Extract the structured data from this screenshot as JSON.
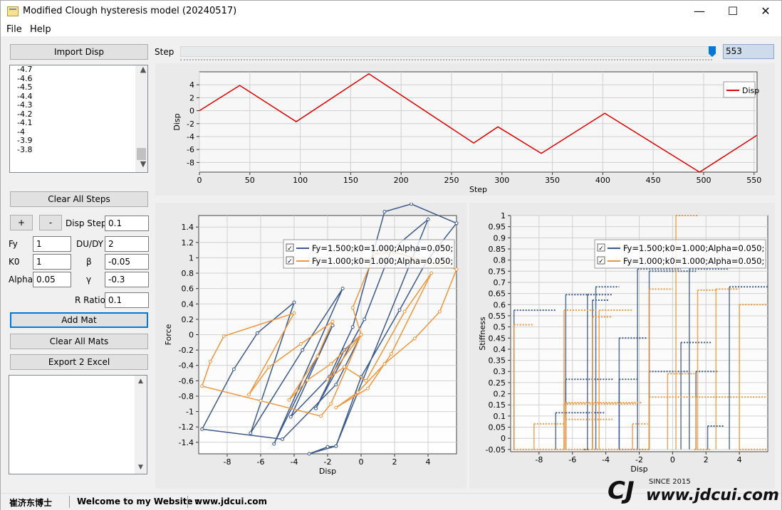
{
  "window": {
    "title": "Modified Clough hysteresis model (20240517)",
    "minimize": "—",
    "maximize": "☐",
    "close": "✕"
  },
  "menu": {
    "file": "File",
    "help": "Help"
  },
  "left": {
    "import_btn": "Import Disp",
    "disp_list": [
      "-4.7",
      "-4.6",
      "-4.5",
      "-4.4",
      "-4.3",
      "-4.2",
      "-4.1",
      "-4",
      "-3.9",
      "-3.8"
    ],
    "clear_steps_btn": "Clear All Steps",
    "plus_btn": "+",
    "minus_btn": "-",
    "disp_step_label": "Disp Step",
    "disp_step_value": "0.1",
    "fy_label": "Fy",
    "fy_value": "1",
    "dudy_label": "DU/DY",
    "dudy_value": "2",
    "k0_label": "K0",
    "k0_value": "1",
    "beta_label": "β",
    "beta_value": "-0.05",
    "alpha_label": "Alpha",
    "alpha_value": "0.05",
    "gamma_label": "γ",
    "gamma_value": "-0.3",
    "rratio_label": "R Ratio",
    "rratio_value": "0.1",
    "add_mat_btn": "Add Mat",
    "clear_mats_btn": "Clear All Mats",
    "export_btn": "Export 2 Excel"
  },
  "step": {
    "label": "Step",
    "value": "553",
    "max": 553
  },
  "status": {
    "author": "崔济东博士",
    "welcome": "Welcome to my Website :",
    "site": "www.jdcui.com"
  },
  "watermark": {
    "text": "www.jdcui.com",
    "since": "SINCE 2015"
  },
  "colors": {
    "disp": "#e00000",
    "series1": "#3c5a8c",
    "series2": "#f0963c"
  },
  "chart_data": [
    {
      "type": "line",
      "xlabel": "Step",
      "ylabel": "Disp",
      "xlim": [
        0,
        553
      ],
      "ylim": [
        -9.5,
        6
      ],
      "xticks": [
        0,
        50,
        100,
        150,
        200,
        250,
        300,
        350,
        400,
        450,
        500,
        550
      ],
      "yticks": [
        4,
        2,
        0,
        -2,
        -4,
        -6,
        -8
      ],
      "legend": "top-right",
      "grid": true,
      "series": [
        {
          "name": "Disp",
          "points": [
            [
              0,
              0
            ],
            [
              40,
              3.9
            ],
            [
              96,
              -1.7
            ],
            [
              168,
              5.7
            ],
            [
              272,
              -5.0
            ],
            [
              296,
              -2.5
            ],
            [
              339,
              -6.6
            ],
            [
              402,
              -0.4
            ],
            [
              496,
              -9.5
            ],
            [
              553,
              -3.8
            ]
          ]
        }
      ]
    },
    {
      "type": "line",
      "xlabel": "Disp",
      "ylabel": "Force",
      "xlim": [
        -9.7,
        5.7
      ],
      "ylim": [
        -1.55,
        1.55
      ],
      "xticks": [
        -8,
        -6,
        -4,
        -2,
        0,
        2,
        4
      ],
      "yticks": [
        1.4,
        1.2,
        1,
        0.8,
        0.6,
        0.4,
        0.2,
        0,
        -0.2,
        -0.4,
        -0.6,
        -0.8,
        -1,
        -1.2,
        -1.4
      ],
      "legend": "top-right",
      "grid": true,
      "series": [
        {
          "name": "Fy=1.500;k0=1.000;Alpha=0.050;",
          "points": [
            [
              0,
              0
            ],
            [
              -1.5,
              -0.65
            ],
            [
              -4.7,
              -1.36
            ],
            [
              -9.5,
              -1.23
            ],
            [
              -7.6,
              -0.45
            ],
            [
              -6.2,
              0.02
            ],
            [
              -4.0,
              0.42
            ],
            [
              -6.6,
              -1.28
            ],
            [
              -3.5,
              -0.2
            ],
            [
              -1.1,
              0.6
            ],
            [
              -5.2,
              -1.42
            ],
            [
              -1.7,
              0.12
            ],
            [
              -4.2,
              -1.07
            ],
            [
              -1.9,
              -0.55
            ],
            [
              -0.5,
              0.1
            ],
            [
              1.4,
              1.6
            ],
            [
              3.0,
              1.7
            ],
            [
              5.7,
              1.45
            ],
            [
              3.9,
              0.95
            ],
            [
              2.3,
              0.32
            ],
            [
              0.0,
              -0.55
            ],
            [
              -1.5,
              -1.45
            ],
            [
              -3.1,
              -1.55
            ],
            [
              -2.0,
              -1.46
            ],
            [
              -1.5,
              -1.45
            ],
            [
              4.0,
              1.5
            ],
            [
              1.8,
              1.1
            ],
            [
              0.2,
              0.2
            ],
            [
              -2.7,
              -0.96
            ],
            [
              -1.0,
              -0.2
            ],
            [
              0,
              0
            ]
          ]
        },
        {
          "name": "Fy=1.000;k0=1.000;Alpha=0.050;",
          "points": [
            [
              0,
              0
            ],
            [
              -1.8,
              -0.9
            ],
            [
              -2.4,
              -1.06
            ],
            [
              -6.0,
              -0.86
            ],
            [
              -9.5,
              -0.67
            ],
            [
              -9.0,
              -0.35
            ],
            [
              -8.2,
              -0.02
            ],
            [
              -4.0,
              0.28
            ],
            [
              -6.7,
              -0.78
            ],
            [
              -5.5,
              -0.42
            ],
            [
              -3.6,
              -0.12
            ],
            [
              -1.7,
              0.17
            ],
            [
              -2.6,
              -0.28
            ],
            [
              -4.3,
              -0.85
            ],
            [
              -3.2,
              -0.59
            ],
            [
              -1.8,
              -0.38
            ],
            [
              0.0,
              0.0
            ],
            [
              -0.5,
              0.35
            ],
            [
              0.8,
              1.05
            ],
            [
              2.0,
              1.07
            ],
            [
              5.7,
              0.85
            ],
            [
              4.7,
              0.3
            ],
            [
              3.2,
              -0.05
            ],
            [
              1.4,
              -0.38
            ],
            [
              -0.2,
              -0.75
            ],
            [
              -1.5,
              -0.95
            ],
            [
              0.4,
              -0.7
            ],
            [
              1.8,
              -0.25
            ],
            [
              4.2,
              0.8
            ],
            [
              2.6,
              0.3
            ],
            [
              0.3,
              -0.6
            ],
            [
              -1.0,
              -0.42
            ],
            [
              -2.0,
              -0.58
            ],
            [
              0,
              0
            ]
          ]
        }
      ]
    },
    {
      "type": "step",
      "xlabel": "Disp",
      "ylabel": "Stiffness",
      "xlim": [
        -9.7,
        5.7
      ],
      "ylim": [
        -0.06,
        1.0
      ],
      "xticks": [
        -8,
        -6,
        -4,
        -2,
        0,
        2,
        4
      ],
      "yticks": [
        1,
        0.95,
        0.9,
        0.85,
        0.8,
        0.75,
        0.7,
        0.65,
        0.6,
        0.55,
        0.5,
        0.45,
        0.4,
        0.35,
        0.3,
        0.25,
        0.2,
        0.15,
        0.1,
        0.05,
        0,
        -0.05
      ],
      "legend": "top-right",
      "grid": true,
      "series": [
        {
          "name": "Fy=1.500;k0=1.000;Alpha=0.050;",
          "segments": [
            [
              -9.5,
              -7.0,
              0.575
            ],
            [
              -7.0,
              -6.4,
              0.115
            ],
            [
              -6.4,
              -5.0,
              0.645
            ],
            [
              -5.0,
              -5.3,
              -0.05
            ],
            [
              -6.4,
              -3.5,
              0.265
            ],
            [
              -6.4,
              -4.1,
              0.115
            ],
            [
              -4.6,
              -3.2,
              0.68
            ],
            [
              -3.2,
              -1.5,
              0.45
            ],
            [
              -4.8,
              -3.8,
              0.62
            ],
            [
              -5.1,
              -3.6,
              0.645
            ],
            [
              -3.2,
              -2.1,
              0.265
            ],
            [
              -2.1,
              0.5,
              0.76
            ],
            [
              0.5,
              2.3,
              0.43
            ],
            [
              -1.4,
              1.4,
              0.75
            ],
            [
              1.4,
              2.7,
              0.3
            ],
            [
              1.0,
              3.4,
              0.76
            ],
            [
              3.4,
              5.7,
              0.68
            ],
            [
              2.1,
              3.1,
              0.055
            ],
            [
              -1.4,
              1.0,
              0.3
            ],
            [
              -3.2,
              -1.4,
              -0.05
            ]
          ]
        },
        {
          "name": "Fy=1.000;k0=1.000;Alpha=0.050;",
          "segments": [
            [
              -9.5,
              -8.3,
              0.51
            ],
            [
              -8.3,
              -6.5,
              0.065
            ],
            [
              -6.5,
              -4.6,
              0.575
            ],
            [
              -6.5,
              -4.9,
              0.155
            ],
            [
              -4.4,
              -2.4,
              0.575
            ],
            [
              -6.4,
              -1.8,
              0.16
            ],
            [
              -4.8,
              -3.6,
              0.545
            ],
            [
              -2.4,
              -1.5,
              0.065
            ],
            [
              -1.4,
              1.4,
              0.185
            ],
            [
              -1.4,
              0.0,
              0.67
            ],
            [
              0.2,
              1.5,
              1.0
            ],
            [
              1.4,
              5.7,
              0.185
            ],
            [
              -4.8,
              -2.2,
              0.155
            ],
            [
              1.5,
              2.6,
              0.665
            ],
            [
              2.6,
              4.0,
              0.67
            ],
            [
              4.0,
              5.7,
              0.6
            ],
            [
              -0.3,
              1.3,
              0.29
            ],
            [
              1.3,
              2.3,
              -0.05
            ],
            [
              -9.5,
              -1.4,
              -0.05
            ],
            [
              4.0,
              5.7,
              -0.05
            ],
            [
              -6.4,
              -3.6,
              0.085
            ]
          ]
        }
      ]
    }
  ]
}
